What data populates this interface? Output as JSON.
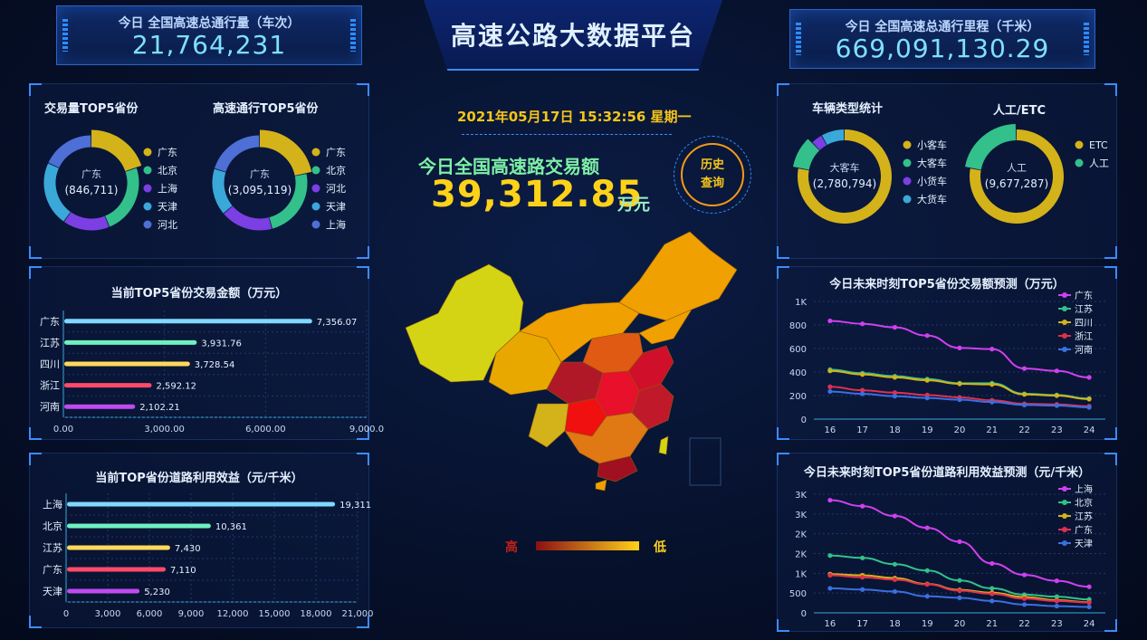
{
  "header": {
    "title": "高速公路大数据平台",
    "kpi_left": {
      "label": "今日 全国高速总通行量（车次）",
      "value": "21,764,231"
    },
    "kpi_right": {
      "label": "今日 全国高速总通行里程（千米）",
      "value": "669,091,130.29"
    }
  },
  "center": {
    "datetime": "2021年05月17日  15:32:56  星期一",
    "total_label": "今日全国高速路交易额",
    "total_value": "39,312.85",
    "total_unit": "万元",
    "history_button": "历史\n查询",
    "scale_high": "高",
    "scale_low": "低"
  },
  "colors": {
    "accent": "#3b8cff",
    "highlight": "#ffd21a",
    "bg": "#06102a",
    "map_low": "#d4d414",
    "map_mid": "#f0a000",
    "map_high": "#c8102e"
  },
  "donuts_left": [
    {
      "title": "交易量TOP5省份",
      "center_name": "广东",
      "center_value": "(846,711)",
      "legend": [
        {
          "name": "广东",
          "color": "#d4b21a"
        },
        {
          "name": "北京",
          "color": "#33c08a"
        },
        {
          "name": "上海",
          "color": "#7b3fe4"
        },
        {
          "name": "天津",
          "color": "#3aa8d8"
        },
        {
          "name": "河北",
          "color": "#4d6fd6"
        }
      ]
    },
    {
      "title": "高速通行TOP5省份",
      "center_name": "广东",
      "center_value": "(3,095,119)",
      "legend": [
        {
          "name": "广东",
          "color": "#d4b21a"
        },
        {
          "name": "北京",
          "color": "#33c08a"
        },
        {
          "name": "河北",
          "color": "#7b3fe4"
        },
        {
          "name": "天津",
          "color": "#3aa8d8"
        },
        {
          "name": "上海",
          "color": "#4d6fd6"
        }
      ]
    }
  ],
  "donuts_right": [
    {
      "title": "车辆类型统计",
      "center_name": "大客车",
      "center_value": "(2,780,794)",
      "legend": [
        {
          "name": "小客车",
          "color": "#d4b21a"
        },
        {
          "name": "大客车",
          "color": "#33c08a"
        },
        {
          "name": "小货车",
          "color": "#7b3fe4"
        },
        {
          "name": "大货车",
          "color": "#3aa8d8"
        }
      ]
    },
    {
      "title": "人工/ETC",
      "center_name": "人工",
      "center_value": "(9,677,287)",
      "legend": [
        {
          "name": "ETC",
          "color": "#d4b21a"
        },
        {
          "name": "人工",
          "color": "#33c08a"
        }
      ]
    }
  ],
  "chart_data": [
    {
      "type": "bar",
      "title": "当前TOP5省份交易金额（万元）",
      "categories": [
        "广东",
        "江苏",
        "四川",
        "浙江",
        "河南"
      ],
      "values": [
        7356.07,
        3931.76,
        3728.54,
        2592.12,
        2102.21
      ],
      "labels": [
        "7,356.07",
        "3,931.76",
        "3,728.54",
        "2,592.12",
        "2,102.21"
      ],
      "xticks": [
        "0.00",
        "3,000.00",
        "6,000.00",
        "9,000.0"
      ],
      "xlim": [
        0,
        9000
      ],
      "bar_colors": [
        "#7fd8ff",
        "#6ff0c0",
        "#ffd95a",
        "#ff4a6a",
        "#c04af0"
      ]
    },
    {
      "type": "bar",
      "title": "当前TOP省份道路利用效益（元/千米）",
      "categories": [
        "上海",
        "北京",
        "江苏",
        "广东",
        "天津"
      ],
      "values": [
        19311,
        10361,
        7430,
        7110,
        5230
      ],
      "labels": [
        "19,311",
        "10,361",
        "7,430",
        "7,110",
        "5,230"
      ],
      "xticks": [
        "0",
        "3,000",
        "6,000",
        "9,000",
        "12,000",
        "15,000",
        "18,000",
        "21,000"
      ],
      "xlim": [
        0,
        21000
      ],
      "bar_colors": [
        "#7fd8ff",
        "#6ff0c0",
        "#ffd95a",
        "#ff4a6a",
        "#c04af0"
      ]
    },
    {
      "type": "line",
      "title": "今日未来时刻TOP5省份交易额预测（万元）",
      "x": [
        "16",
        "17",
        "18",
        "19",
        "20",
        "21",
        "22",
        "23",
        "24"
      ],
      "ylim": [
        0,
        1000
      ],
      "yticks": [
        "0",
        "200",
        "400",
        "600",
        "800",
        "1K"
      ],
      "ytick_values": [
        0,
        200,
        400,
        600,
        800,
        1000
      ],
      "series": [
        {
          "name": "广东",
          "color": "#d040f0",
          "values": [
            835,
            810,
            780,
            710,
            605,
            595,
            430,
            410,
            355
          ]
        },
        {
          "name": "江苏",
          "color": "#33c08a",
          "values": [
            420,
            390,
            365,
            340,
            305,
            305,
            215,
            205,
            175
          ]
        },
        {
          "name": "四川",
          "color": "#d4b21a",
          "values": [
            410,
            380,
            355,
            330,
            300,
            295,
            210,
            200,
            170
          ]
        },
        {
          "name": "浙江",
          "color": "#e03050",
          "values": [
            275,
            245,
            225,
            205,
            185,
            160,
            130,
            125,
            110
          ]
        },
        {
          "name": "河南",
          "color": "#3a6fe0",
          "values": [
            235,
            215,
            195,
            180,
            165,
            145,
            120,
            115,
            100
          ]
        }
      ]
    },
    {
      "type": "line",
      "title": "今日未来时刻TOP5省份道路利用效益预测（元/千米）",
      "x": [
        "16",
        "17",
        "18",
        "19",
        "20",
        "21",
        "22",
        "23",
        "24"
      ],
      "ylim": [
        0,
        3000
      ],
      "yticks": [
        "0",
        "500",
        "1K",
        "2K",
        "2K",
        "3K",
        "3K"
      ],
      "ytick_values": [
        0,
        500,
        1000,
        1500,
        2000,
        2500,
        3000
      ],
      "series": [
        {
          "name": "上海",
          "color": "#d040f0",
          "values": [
            2850,
            2700,
            2450,
            2150,
            1800,
            1250,
            960,
            810,
            660
          ]
        },
        {
          "name": "北京",
          "color": "#33c08a",
          "values": [
            1450,
            1390,
            1230,
            1070,
            820,
            620,
            460,
            410,
            340
          ]
        },
        {
          "name": "江苏",
          "color": "#d4b21a",
          "values": [
            980,
            950,
            880,
            730,
            580,
            510,
            400,
            320,
            270
          ]
        },
        {
          "name": "广东",
          "color": "#e03050",
          "values": [
            950,
            900,
            840,
            720,
            560,
            480,
            360,
            300,
            260
          ]
        },
        {
          "name": "天津",
          "color": "#3a6fe0",
          "values": [
            620,
            590,
            540,
            420,
            380,
            300,
            210,
            170,
            150
          ]
        }
      ]
    }
  ]
}
